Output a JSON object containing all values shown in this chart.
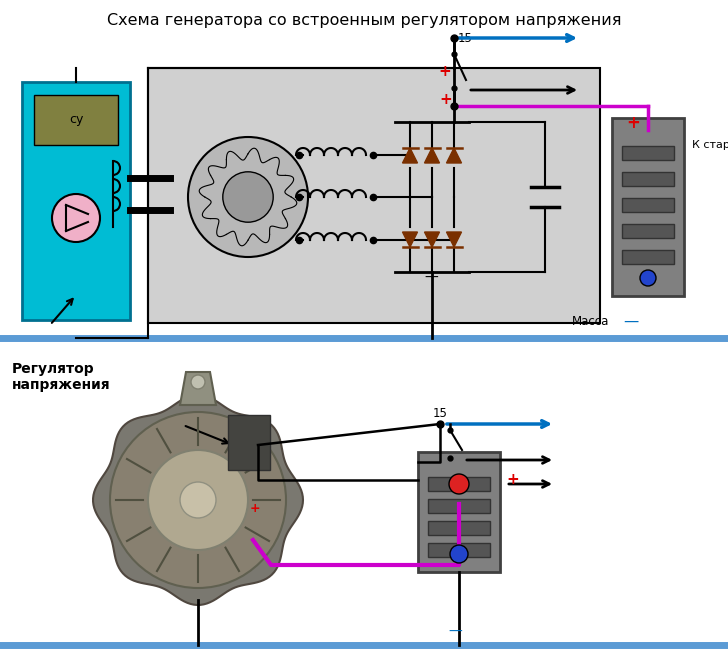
{
  "title": "Схема генератора со встроенным регулятором напряжения",
  "title_fontsize": 11.5,
  "background_color": "#ffffff",
  "label_massa": "Масса",
  "label_k_starteru": "К стартеру",
  "label_regulator": "Регулятор\nнапряжения",
  "label_su": "су",
  "label_15_top": "15",
  "label_15_bot": "15",
  "color_blue_line": "#0070c0",
  "color_pink_line": "#cc00cc",
  "color_black": "#000000",
  "color_cyan_box": "#00bcd4",
  "color_light_gray": "#d0d0d0",
  "color_dark_brown": "#7a3000",
  "color_red": "#dd0000",
  "color_ground_bar": "#5b9bd5",
  "color_battery_box": "#808080",
  "color_su_box": "#808040"
}
